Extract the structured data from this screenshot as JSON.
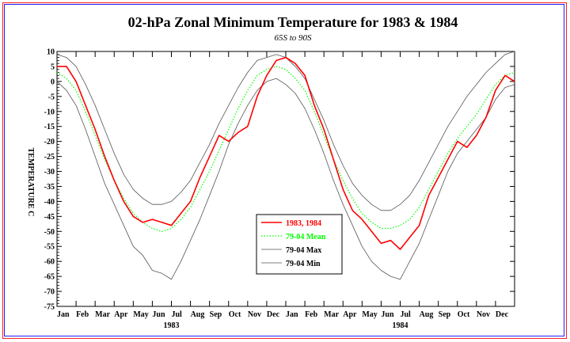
{
  "chart_data": {
    "type": "line",
    "title": "02-hPa Zonal Minimum Temperature for 1983 & 1984",
    "subtitle": "65S to 90S",
    "ylabel": "TEMPERATURE C",
    "ylim": [
      -75,
      10
    ],
    "yticks": [
      10,
      5,
      0,
      -5,
      -10,
      -15,
      -20,
      -25,
      -30,
      -35,
      -40,
      -45,
      -50,
      -55,
      -60,
      -65,
      -70,
      -75
    ],
    "xlim": [
      0,
      24
    ],
    "month_labels": [
      "Jan",
      "Feb",
      "Mar",
      "Apr",
      "May",
      "Jun",
      "Jul",
      "Aug",
      "Sep",
      "Oct",
      "Nov",
      "Dec",
      "Jan",
      "Feb",
      "Mar",
      "Apr",
      "May",
      "Jun",
      "Jul",
      "Aug",
      "Sep",
      "Oct",
      "Nov",
      "Dec"
    ],
    "year_labels": [
      {
        "label": "1983",
        "x": 6
      },
      {
        "label": "1984",
        "x": 18
      }
    ],
    "x": [
      0,
      0.5,
      1,
      1.5,
      2,
      2.5,
      3,
      3.5,
      4,
      4.5,
      5,
      5.5,
      6,
      6.5,
      7,
      7.5,
      8,
      8.5,
      9,
      9.5,
      10,
      10.5,
      11,
      11.5,
      12,
      12.5,
      13,
      13.5,
      14,
      14.5,
      15,
      15.5,
      16,
      16.5,
      17,
      17.5,
      18,
      18.5,
      19,
      19.5,
      20,
      20.5,
      21,
      21.5,
      22,
      22.5,
      23,
      23.5,
      24
    ],
    "series": [
      {
        "name": "1983, 1984",
        "color": "#ff0000",
        "style": "solid",
        "width": 1.6,
        "values": [
          5,
          5,
          0,
          -8,
          -16,
          -25,
          -33,
          -40,
          -45,
          -47,
          -46,
          -47,
          -48,
          -44,
          -40,
          -32,
          -25,
          -18,
          -20,
          -17,
          -15,
          -5,
          2,
          7,
          8,
          6,
          2,
          -8,
          -16,
          -26,
          -36,
          -43,
          -46,
          -50,
          -54,
          -53,
          -56,
          -52,
          -48,
          -38,
          -32,
          -26,
          -20,
          -22,
          -18,
          -12,
          -3,
          2,
          0
        ]
      },
      {
        "name": "79-04 Mean",
        "color": "#00ff00",
        "style": "dotted",
        "width": 1.2,
        "values": [
          3,
          1,
          -3,
          -10,
          -18,
          -26,
          -33,
          -39,
          -44,
          -47,
          -49,
          -50,
          -49,
          -46,
          -42,
          -36,
          -30,
          -23,
          -16,
          -9,
          -3,
          2,
          4,
          5,
          4,
          1,
          -3,
          -10,
          -18,
          -26,
          -33,
          -39,
          -44,
          -47,
          -49,
          -49,
          -48,
          -46,
          -42,
          -36,
          -30,
          -24,
          -19,
          -15,
          -11,
          -6,
          -1,
          2,
          3
        ]
      },
      {
        "name": "79-04 Max",
        "color": "#555555",
        "style": "solid",
        "width": 0.8,
        "values": [
          9,
          8,
          5,
          -1,
          -8,
          -16,
          -24,
          -31,
          -36,
          -39,
          -41,
          -41,
          -40,
          -37,
          -33,
          -27,
          -21,
          -14,
          -8,
          -2,
          3,
          7,
          8,
          9,
          8,
          5,
          1,
          -6,
          -13,
          -21,
          -28,
          -34,
          -38,
          -41,
          -43,
          -43,
          -41,
          -38,
          -33,
          -27,
          -21,
          -15,
          -10,
          -5,
          -1,
          3,
          6,
          9,
          10
        ]
      },
      {
        "name": "79-04 Min",
        "color": "#555555",
        "style": "solid",
        "width": 0.8,
        "values": [
          0,
          -3,
          -8,
          -16,
          -25,
          -34,
          -41,
          -48,
          -55,
          -58,
          -63,
          -64,
          -66,
          -60,
          -53,
          -46,
          -38,
          -30,
          -21,
          -14,
          -8,
          -3,
          0,
          1,
          -1,
          -4,
          -9,
          -16,
          -24,
          -33,
          -41,
          -48,
          -55,
          -60,
          -63,
          -65,
          -66,
          -60,
          -54,
          -46,
          -38,
          -30,
          -24,
          -20,
          -16,
          -12,
          -6,
          -2,
          -1
        ]
      }
    ],
    "legend": "lower-center",
    "grid": false
  }
}
